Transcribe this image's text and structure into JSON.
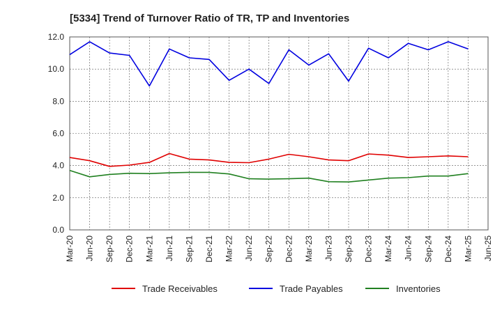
{
  "chart_data": {
    "type": "line",
    "title": "[5334]  Trend of Turnover Ratio of TR, TP and Inventories",
    "xlabel": "",
    "ylabel": "",
    "ylim": [
      0,
      12
    ],
    "yticks": [
      "0.0",
      "2.0",
      "4.0",
      "6.0",
      "8.0",
      "10.0",
      "12.0"
    ],
    "ytick_values": [
      0,
      2,
      4,
      6,
      8,
      10,
      12
    ],
    "x_tick_labels": [
      "Mar-20",
      "Jun-20",
      "Sep-20",
      "Dec-20",
      "Mar-21",
      "Jun-21",
      "Sep-21",
      "Dec-21",
      "Mar-22",
      "Jun-22",
      "Sep-22",
      "Dec-22",
      "Mar-23",
      "Jun-23",
      "Sep-23",
      "Dec-23",
      "Mar-24",
      "Jun-24",
      "Sep-24",
      "Dec-24",
      "Mar-25",
      "Jun-25"
    ],
    "categories": [
      "Mar-20",
      "Jun-20",
      "Sep-20",
      "Dec-20",
      "Mar-21",
      "Jun-21",
      "Sep-21",
      "Dec-21",
      "Mar-22",
      "Jun-22",
      "Sep-22",
      "Dec-22",
      "Mar-23",
      "Jun-23",
      "Sep-23",
      "Dec-23",
      "Mar-24",
      "Jun-24",
      "Sep-24",
      "Dec-24",
      "Mar-25"
    ],
    "grid": true,
    "legend_position": "bottom",
    "series": [
      {
        "name": "Trade Receivables",
        "color": "#e00000",
        "values": [
          4.5,
          4.3,
          3.95,
          4.03,
          4.2,
          4.75,
          4.4,
          4.35,
          4.2,
          4.18,
          4.4,
          4.7,
          4.55,
          4.35,
          4.3,
          4.72,
          4.65,
          4.5,
          4.55,
          4.6,
          4.55
        ]
      },
      {
        "name": "Trade Payables",
        "color": "#0000e0",
        "values": [
          10.9,
          11.7,
          11.0,
          10.85,
          8.95,
          11.25,
          10.7,
          10.6,
          9.3,
          10.0,
          9.1,
          11.2,
          10.25,
          10.95,
          9.25,
          11.3,
          10.7,
          11.6,
          11.2,
          11.7,
          11.25
        ]
      },
      {
        "name": "Inventories",
        "color": "#208020",
        "values": [
          3.7,
          3.3,
          3.45,
          3.52,
          3.5,
          3.55,
          3.58,
          3.58,
          3.48,
          3.18,
          3.16,
          3.18,
          3.22,
          3.0,
          2.98,
          3.1,
          3.22,
          3.25,
          3.35,
          3.35,
          3.5
        ]
      }
    ]
  }
}
